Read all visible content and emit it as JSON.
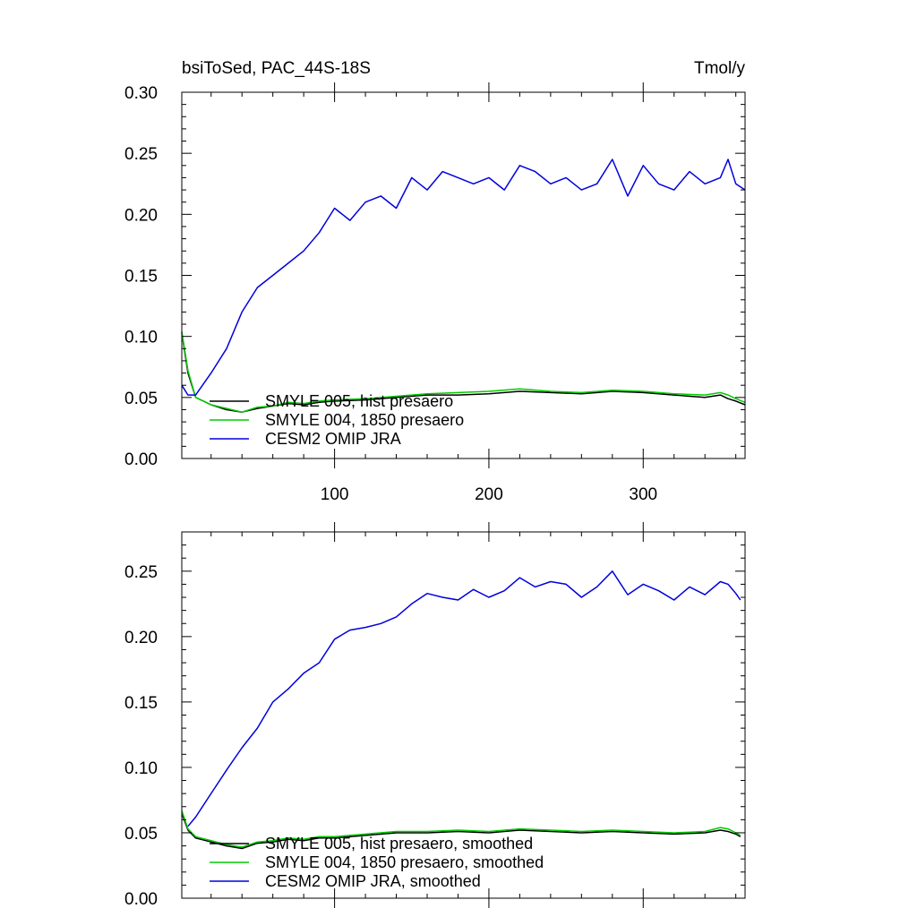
{
  "chart_data": [
    {
      "type": "line",
      "title": "bsiToSed, PAC_44S-18S",
      "units": "Tmol/y",
      "xlim": [
        1,
        366
      ],
      "ylim": [
        0,
        0.3
      ],
      "xticks": [
        100,
        200,
        300
      ],
      "xtick_labels": [
        "100",
        "200",
        "300"
      ],
      "yticks": [
        0,
        0.05,
        0.1,
        0.15,
        0.2,
        0.25,
        0.3
      ],
      "ytick_labels": [
        "0.00",
        "0.05",
        "0.10",
        "0.15",
        "0.20",
        "0.25",
        "0.30"
      ],
      "grid": false,
      "legend_position": "lower-left",
      "series": [
        {
          "name": "SMYLE 005, hist presaero",
          "color": "#000000",
          "x": [
            1,
            5,
            10,
            20,
            30,
            40,
            50,
            60,
            70,
            80,
            90,
            100,
            120,
            140,
            160,
            180,
            200,
            220,
            240,
            260,
            280,
            300,
            320,
            340,
            350,
            355,
            360,
            366
          ],
          "y": [
            0.103,
            0.07,
            0.05,
            0.044,
            0.04,
            0.038,
            0.041,
            0.043,
            0.045,
            0.044,
            0.046,
            0.047,
            0.048,
            0.05,
            0.052,
            0.052,
            0.053,
            0.055,
            0.054,
            0.053,
            0.055,
            0.054,
            0.052,
            0.05,
            0.052,
            0.049,
            0.047,
            0.044
          ]
        },
        {
          "name": "SMYLE 004, 1850 presaero",
          "color": "#00cc00",
          "x": [
            1,
            5,
            10,
            20,
            30,
            40,
            50,
            60,
            70,
            80,
            90,
            100,
            120,
            140,
            160,
            180,
            200,
            220,
            240,
            260,
            280,
            300,
            320,
            340,
            350,
            355,
            360,
            366
          ],
          "y": [
            0.104,
            0.072,
            0.05,
            0.044,
            0.041,
            0.038,
            0.042,
            0.043,
            0.046,
            0.045,
            0.047,
            0.048,
            0.049,
            0.051,
            0.053,
            0.054,
            0.055,
            0.057,
            0.055,
            0.054,
            0.056,
            0.055,
            0.053,
            0.052,
            0.054,
            0.052,
            0.049,
            0.046
          ]
        },
        {
          "name": "CESM2 OMIP JRA",
          "color": "#0000dd",
          "x": [
            1,
            5,
            10,
            20,
            30,
            40,
            50,
            60,
            70,
            80,
            90,
            100,
            110,
            120,
            130,
            140,
            150,
            160,
            170,
            180,
            190,
            200,
            210,
            220,
            230,
            240,
            250,
            260,
            270,
            280,
            290,
            300,
            310,
            320,
            330,
            340,
            350,
            355,
            360,
            366
          ],
          "y": [
            0.06,
            0.052,
            0.052,
            0.07,
            0.09,
            0.12,
            0.14,
            0.15,
            0.16,
            0.17,
            0.185,
            0.205,
            0.195,
            0.21,
            0.215,
            0.205,
            0.23,
            0.22,
            0.235,
            0.23,
            0.225,
            0.23,
            0.22,
            0.24,
            0.235,
            0.225,
            0.23,
            0.22,
            0.225,
            0.245,
            0.215,
            0.24,
            0.225,
            0.22,
            0.235,
            0.225,
            0.23,
            0.245,
            0.225,
            0.22
          ]
        }
      ]
    },
    {
      "type": "line",
      "title": "",
      "xlim": [
        1,
        366
      ],
      "ylim": [
        0,
        0.28
      ],
      "xticks": [
        100,
        200,
        300
      ],
      "xtick_labels": [
        "",
        "",
        ""
      ],
      "yticks": [
        0,
        0.05,
        0.1,
        0.15,
        0.2,
        0.25
      ],
      "ytick_labels": [
        "0.00",
        "0.05",
        "0.10",
        "0.15",
        "0.20",
        "0.25"
      ],
      "grid": false,
      "legend_position": "lower-left",
      "series": [
        {
          "name": "SMYLE 005, hist presaero, smoothed",
          "color": "#000000",
          "x": [
            1,
            5,
            10,
            20,
            30,
            40,
            50,
            60,
            70,
            80,
            90,
            100,
            120,
            140,
            160,
            180,
            200,
            220,
            240,
            260,
            280,
            300,
            320,
            340,
            350,
            355,
            360,
            363
          ],
          "y": [
            0.065,
            0.052,
            0.046,
            0.043,
            0.04,
            0.038,
            0.042,
            0.043,
            0.045,
            0.044,
            0.046,
            0.046,
            0.048,
            0.05,
            0.05,
            0.051,
            0.05,
            0.052,
            0.051,
            0.05,
            0.051,
            0.05,
            0.049,
            0.05,
            0.052,
            0.051,
            0.049,
            0.047
          ]
        },
        {
          "name": "SMYLE 004, 1850 presaero, smoothed",
          "color": "#00cc00",
          "x": [
            1,
            5,
            10,
            20,
            30,
            40,
            50,
            60,
            70,
            80,
            90,
            100,
            120,
            140,
            160,
            180,
            200,
            220,
            240,
            260,
            280,
            300,
            320,
            340,
            350,
            355,
            360,
            363
          ],
          "y": [
            0.067,
            0.053,
            0.047,
            0.044,
            0.041,
            0.039,
            0.043,
            0.044,
            0.046,
            0.045,
            0.047,
            0.047,
            0.049,
            0.051,
            0.051,
            0.052,
            0.051,
            0.053,
            0.052,
            0.051,
            0.052,
            0.051,
            0.05,
            0.051,
            0.054,
            0.053,
            0.05,
            0.048
          ]
        },
        {
          "name": "CESM2 OMIP JRA, smoothed",
          "color": "#0000dd",
          "x": [
            5,
            10,
            20,
            30,
            40,
            50,
            60,
            70,
            80,
            90,
            100,
            110,
            120,
            130,
            140,
            150,
            160,
            170,
            180,
            190,
            200,
            210,
            220,
            230,
            240,
            250,
            260,
            270,
            280,
            290,
            300,
            310,
            320,
            330,
            340,
            350,
            355,
            360,
            363
          ],
          "y": [
            0.055,
            0.062,
            0.08,
            0.098,
            0.115,
            0.13,
            0.15,
            0.16,
            0.172,
            0.18,
            0.198,
            0.205,
            0.207,
            0.21,
            0.215,
            0.225,
            0.233,
            0.23,
            0.228,
            0.236,
            0.23,
            0.235,
            0.245,
            0.238,
            0.242,
            0.24,
            0.23,
            0.238,
            0.25,
            0.232,
            0.24,
            0.235,
            0.228,
            0.238,
            0.232,
            0.242,
            0.24,
            0.233,
            0.228
          ]
        }
      ]
    }
  ]
}
